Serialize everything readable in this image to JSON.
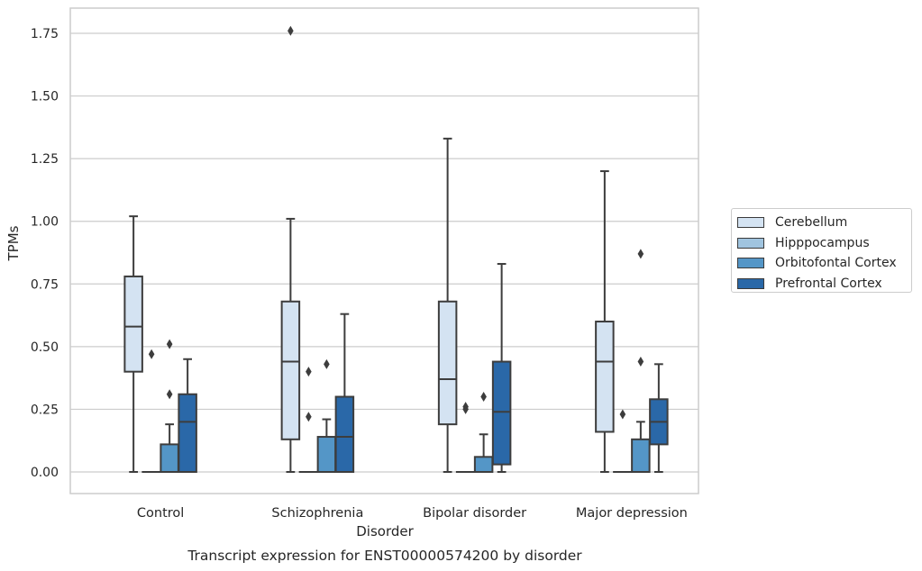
{
  "chart_data": {
    "type": "box",
    "caption": "Transcript expression for ENST00000574200 by disorder",
    "xlabel": "Disorder",
    "ylabel": "TPMs",
    "ylim": [
      -0.09,
      1.85
    ],
    "yticks": [
      {
        "value": 0.0,
        "label": "0.00"
      },
      {
        "value": 0.25,
        "label": "0.25"
      },
      {
        "value": 0.5,
        "label": "0.50"
      },
      {
        "value": 0.75,
        "label": "0.75"
      },
      {
        "value": 1.0,
        "label": "1.00"
      },
      {
        "value": 1.25,
        "label": "1.25"
      },
      {
        "value": 1.5,
        "label": "1.50"
      },
      {
        "value": 1.75,
        "label": "1.75"
      }
    ],
    "grid": "horizontal",
    "legend_position": "right",
    "categories": [
      "Control",
      "Schizophrenia",
      "Bipolar disorder",
      "Major depression"
    ],
    "series": [
      {
        "name": "Cerebellum",
        "color": "#d4e3f2",
        "boxes": [
          {
            "whisker_low": 0.0,
            "q1": 0.4,
            "median": 0.58,
            "q3": 0.78,
            "whisker_high": 1.02,
            "outliers": []
          },
          {
            "whisker_low": 0.0,
            "q1": 0.13,
            "median": 0.44,
            "q3": 0.68,
            "whisker_high": 1.01,
            "outliers": [
              1.76
            ]
          },
          {
            "whisker_low": 0.0,
            "q1": 0.19,
            "median": 0.37,
            "q3": 0.68,
            "whisker_high": 1.33,
            "outliers": []
          },
          {
            "whisker_low": 0.0,
            "q1": 0.16,
            "median": 0.44,
            "q3": 0.6,
            "whisker_high": 1.2,
            "outliers": []
          }
        ]
      },
      {
        "name": "Hipppocampus",
        "color": "#a0c4df",
        "boxes": [
          {
            "whisker_low": 0.0,
            "q1": 0.0,
            "median": 0.0,
            "q3": 0.0,
            "whisker_high": 0.0,
            "outliers": [
              0.47
            ]
          },
          {
            "whisker_low": 0.0,
            "q1": 0.0,
            "median": 0.0,
            "q3": 0.0,
            "whisker_high": 0.0,
            "outliers": [
              0.4,
              0.22
            ]
          },
          {
            "whisker_low": 0.0,
            "q1": 0.0,
            "median": 0.0,
            "q3": 0.0,
            "whisker_high": 0.0,
            "outliers": [
              0.26,
              0.25
            ]
          },
          {
            "whisker_low": 0.0,
            "q1": 0.0,
            "median": 0.0,
            "q3": 0.0,
            "whisker_high": 0.0,
            "outliers": [
              0.23
            ]
          }
        ]
      },
      {
        "name": "Orbitofontal Cortex",
        "color": "#5496c7",
        "boxes": [
          {
            "whisker_low": 0.0,
            "q1": 0.0,
            "median": 0.0,
            "q3": 0.11,
            "whisker_high": 0.19,
            "outliers": [
              0.51,
              0.31
            ]
          },
          {
            "whisker_low": 0.0,
            "q1": 0.0,
            "median": 0.0,
            "q3": 0.14,
            "whisker_high": 0.21,
            "outliers": [
              0.43
            ]
          },
          {
            "whisker_low": 0.0,
            "q1": 0.0,
            "median": 0.0,
            "q3": 0.06,
            "whisker_high": 0.15,
            "outliers": [
              0.3
            ]
          },
          {
            "whisker_low": 0.0,
            "q1": 0.0,
            "median": 0.0,
            "q3": 0.13,
            "whisker_high": 0.2,
            "outliers": [
              0.87,
              0.44
            ]
          }
        ]
      },
      {
        "name": "Prefrontal Cortex",
        "color": "#2a68a8",
        "boxes": [
          {
            "whisker_low": 0.0,
            "q1": 0.0,
            "median": 0.2,
            "q3": 0.31,
            "whisker_high": 0.45,
            "outliers": []
          },
          {
            "whisker_low": 0.0,
            "q1": 0.0,
            "median": 0.14,
            "q3": 0.3,
            "whisker_high": 0.63,
            "outliers": []
          },
          {
            "whisker_low": 0.0,
            "q1": 0.03,
            "median": 0.24,
            "q3": 0.44,
            "whisker_high": 0.83,
            "outliers": []
          },
          {
            "whisker_low": 0.0,
            "q1": 0.11,
            "median": 0.2,
            "q3": 0.29,
            "whisker_high": 0.43,
            "outliers": []
          }
        ]
      }
    ]
  }
}
